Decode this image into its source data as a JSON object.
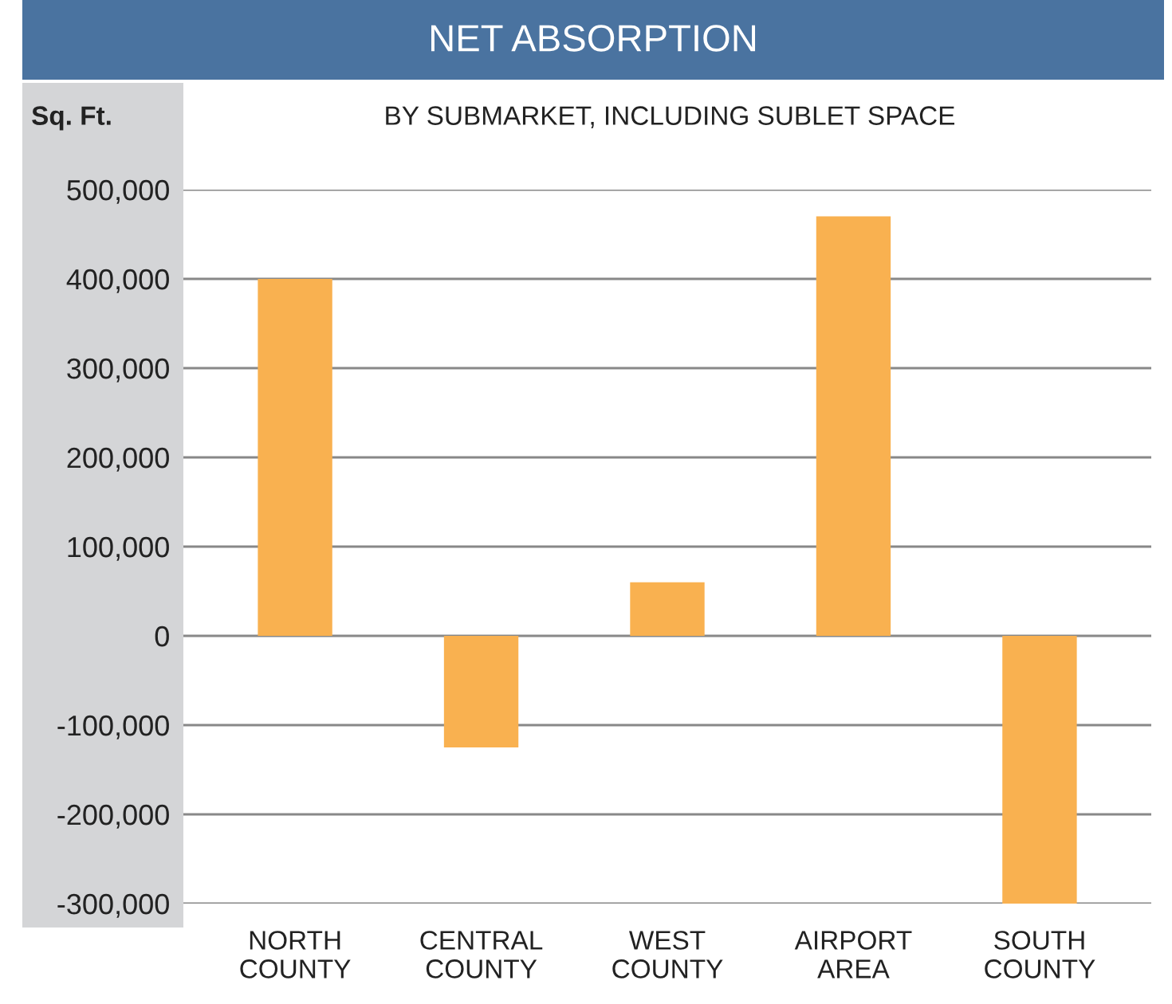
{
  "chart_data": {
    "type": "bar",
    "title": "NET ABSORPTION",
    "subtitle": "BY SUBMARKET, INCLUDING SUBLET SPACE",
    "ylabel": "Sq. Ft.",
    "categories": [
      "NORTH\nCOUNTY",
      "CENTRAL\nCOUNTY",
      "WEST\nCOUNTY",
      "AIRPORT\nAREA",
      "SOUTH\nCOUNTY"
    ],
    "values": [
      400000,
      -125000,
      60000,
      470000,
      -300000
    ],
    "color": "#f9b150",
    "ylim": [
      -300000,
      500000
    ],
    "yticks": [
      {
        "value": -300000,
        "label": "-300,000"
      },
      {
        "value": -200000,
        "label": "-200,000"
      },
      {
        "value": -100000,
        "label": "-100,000"
      },
      0,
      {
        "value": 100000,
        "label": "100,000"
      },
      {
        "value": 200000,
        "label": "200,000"
      },
      {
        "value": 300000,
        "label": "300,000"
      },
      {
        "value": 400000,
        "label": "400,000"
      },
      {
        "value": 500000,
        "label": "500,000"
      }
    ],
    "grid": "y"
  }
}
